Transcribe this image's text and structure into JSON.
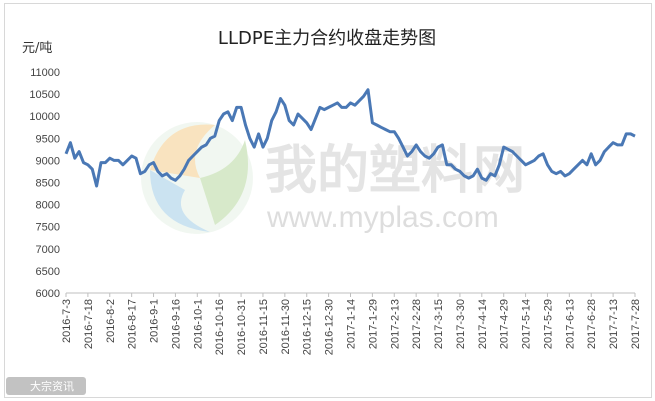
{
  "watermark": {
    "brand_text": "我的塑料网",
    "url_text": "www.myplas.com",
    "corner_text": "大宗资讯"
  },
  "chart_data": {
    "type": "line",
    "title": "LLDPE主力合约收盘走势图",
    "xlabel": "",
    "ylabel": "元/吨",
    "ylim": [
      6000,
      11000
    ],
    "y_ticks": [
      6000,
      6500,
      7000,
      7500,
      8000,
      8500,
      9000,
      9500,
      10000,
      10500,
      11000
    ],
    "grid": false,
    "legend": "none",
    "line_color": "#4a78b5",
    "x_tick_labels": [
      "2016-7-3",
      "2016-7-18",
      "2016-8-2",
      "2016-8-17",
      "2016-9-1",
      "2016-9-16",
      "2016-10-1",
      "2016-10-16",
      "2016-10-31",
      "2016-11-15",
      "2016-11-30",
      "2016-12-15",
      "2016-12-30",
      "2017-1-14",
      "2017-1-29",
      "2017-2-13",
      "2017-2-28",
      "2017-3-15",
      "2017-3-30",
      "2017-4-14",
      "2017-4-29",
      "2017-5-14",
      "2017-5-29",
      "2017-6-13",
      "2017-6-28",
      "2017-7-13",
      "2017-7-28"
    ],
    "series": [
      {
        "x": [
          "2016-7-3",
          "2016-7-6",
          "2016-7-9",
          "2016-7-12",
          "2016-7-15",
          "2016-7-18",
          "2016-7-21",
          "2016-7-24",
          "2016-7-27",
          "2016-7-30",
          "2016-8-2",
          "2016-8-5",
          "2016-8-8",
          "2016-8-11",
          "2016-8-14",
          "2016-8-17",
          "2016-8-20",
          "2016-8-23",
          "2016-8-26",
          "2016-8-29",
          "2016-9-1",
          "2016-9-4",
          "2016-9-7",
          "2016-9-10",
          "2016-9-13",
          "2016-9-16",
          "2016-9-19",
          "2016-9-22",
          "2016-9-25",
          "2016-9-28",
          "2016-10-1",
          "2016-10-4",
          "2016-10-7",
          "2016-10-10",
          "2016-10-13",
          "2016-10-16",
          "2016-10-19",
          "2016-10-22",
          "2016-10-25",
          "2016-10-28",
          "2016-10-31",
          "2016-11-3",
          "2016-11-6",
          "2016-11-9",
          "2016-11-12",
          "2016-11-15",
          "2016-11-18",
          "2016-11-21",
          "2016-11-24",
          "2016-11-27",
          "2016-11-30",
          "2016-12-3",
          "2016-12-6",
          "2016-12-9",
          "2016-12-12",
          "2016-12-15",
          "2016-12-18",
          "2016-12-21",
          "2016-12-24",
          "2016-12-27",
          "2016-12-30",
          "2017-1-2",
          "2017-1-5",
          "2017-1-8",
          "2017-1-11",
          "2017-1-14",
          "2017-1-17",
          "2017-1-20",
          "2017-1-23",
          "2017-1-26",
          "2017-1-29",
          "2017-2-1",
          "2017-2-4",
          "2017-2-7",
          "2017-2-10",
          "2017-2-13",
          "2017-2-16",
          "2017-2-19",
          "2017-2-22",
          "2017-2-25",
          "2017-2-28",
          "2017-3-3",
          "2017-3-6",
          "2017-3-9",
          "2017-3-12",
          "2017-3-15",
          "2017-3-18",
          "2017-3-21",
          "2017-3-24",
          "2017-3-27",
          "2017-3-30",
          "2017-4-2",
          "2017-4-5",
          "2017-4-8",
          "2017-4-11",
          "2017-4-14",
          "2017-4-17",
          "2017-4-20",
          "2017-4-23",
          "2017-4-26",
          "2017-4-29",
          "2017-5-2",
          "2017-5-5",
          "2017-5-8",
          "2017-5-11",
          "2017-5-14",
          "2017-5-17",
          "2017-5-20",
          "2017-5-23",
          "2017-5-26",
          "2017-5-29",
          "2017-6-1",
          "2017-6-4",
          "2017-6-7",
          "2017-6-10",
          "2017-6-13",
          "2017-6-16",
          "2017-6-19",
          "2017-6-22",
          "2017-6-25",
          "2017-6-28",
          "2017-7-1",
          "2017-7-4",
          "2017-7-7",
          "2017-7-10",
          "2017-7-13",
          "2017-7-16",
          "2017-7-19",
          "2017-7-22",
          "2017-7-25",
          "2017-7-28"
        ],
        "values": [
          9150,
          9400,
          9050,
          9200,
          8950,
          8900,
          8800,
          8420,
          8950,
          8950,
          9050,
          9000,
          9000,
          8900,
          9000,
          9100,
          9050,
          8700,
          8750,
          8900,
          8950,
          8750,
          8650,
          8700,
          8600,
          8550,
          8650,
          8800,
          9000,
          9100,
          9200,
          9300,
          9350,
          9500,
          9550,
          9900,
          10050,
          10100,
          9900,
          10200,
          10200,
          9800,
          9500,
          9300,
          9600,
          9300,
          9500,
          9900,
          10100,
          10400,
          10250,
          9900,
          9800,
          10050,
          9950,
          9850,
          9700,
          9950,
          10200,
          10150,
          10200,
          10250,
          10300,
          10200,
          10200,
          10300,
          10250,
          10350,
          10450,
          10600,
          9850,
          9800,
          9750,
          9700,
          9650,
          9650,
          9500,
          9300,
          9100,
          9200,
          9350,
          9200,
          9100,
          9050,
          9150,
          9300,
          9350,
          8900,
          8900,
          8800,
          8750,
          8650,
          8600,
          8650,
          8800,
          8600,
          8550,
          8700,
          8650,
          8900,
          9300,
          9250,
          9200,
          9100,
          9000,
          8900,
          8950,
          9000,
          9100,
          9150,
          8900,
          8750,
          8700,
          8750,
          8650,
          8700,
          8800,
          8900,
          9000,
          8900,
          9150,
          8900,
          9000,
          9200,
          9300,
          9400,
          9350,
          9350,
          9600,
          9600,
          9550
        ]
      }
    ]
  }
}
